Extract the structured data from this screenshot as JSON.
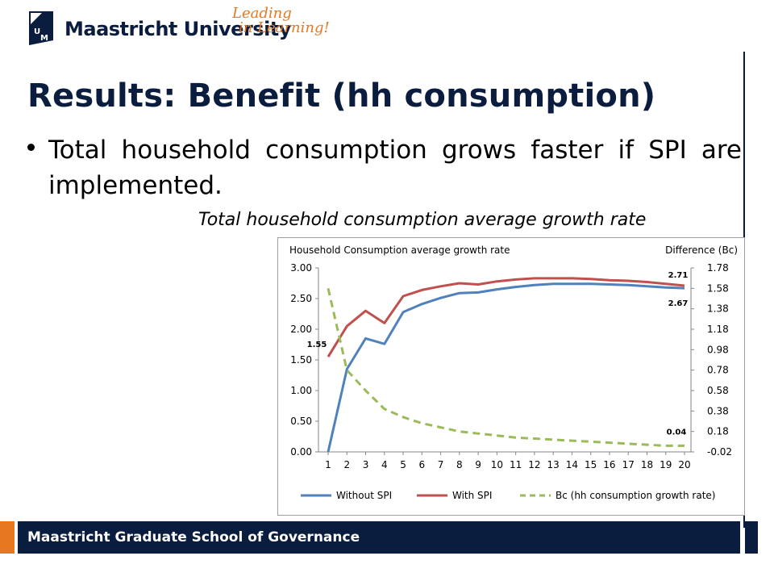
{
  "header": {
    "university": "Maastricht University",
    "tagline_line1": "Leading",
    "tagline_line2": "in Learning!"
  },
  "slide": {
    "title": "Results: Benefit (hh consumption)",
    "bullet": "Total household consumption grows faster if SPI are implemented.",
    "subcaption": "Total household consumption average growth rate"
  },
  "footer": {
    "text": "Maastricht Graduate School of Governance"
  },
  "colors": {
    "navy": "#0b1d3e",
    "orange": "#e87722",
    "blue": "#4f81bd",
    "red": "#c0504d",
    "green": "#9bbb59"
  },
  "chart_data": {
    "type": "line",
    "title": "Household Consumption  average growth rate",
    "right_axis_title": "Difference (Bc)",
    "x": [
      "1",
      "2",
      "3",
      "4",
      "5",
      "6",
      "7",
      "8",
      "9",
      "10",
      "11",
      "12",
      "13",
      "14",
      "15",
      "16",
      "17",
      "18",
      "19",
      "20"
    ],
    "ylim": [
      0,
      3
    ],
    "yticks": [
      "3.00",
      "2.50",
      "2.00",
      "1.50",
      "1.00",
      "0.50",
      "0.00"
    ],
    "y2lim": [
      -0.02,
      1.78
    ],
    "y2ticks": [
      "1.78",
      "1.58",
      "1.38",
      "1.18",
      "0.98",
      "0.78",
      "0.58",
      "0.38",
      "0.18",
      "-0.02"
    ],
    "series": [
      {
        "name": "Without SPI",
        "color": "#4f81bd",
        "axis": "left",
        "dash": false,
        "values": [
          0.0,
          1.35,
          1.85,
          1.76,
          2.28,
          2.41,
          2.51,
          2.59,
          2.6,
          2.65,
          2.69,
          2.72,
          2.74,
          2.74,
          2.74,
          2.73,
          2.72,
          2.7,
          2.68,
          2.67
        ]
      },
      {
        "name": "With SPI",
        "color": "#c0504d",
        "axis": "left",
        "dash": false,
        "values": [
          1.55,
          2.05,
          2.3,
          2.1,
          2.54,
          2.64,
          2.7,
          2.75,
          2.73,
          2.78,
          2.81,
          2.83,
          2.83,
          2.83,
          2.82,
          2.8,
          2.79,
          2.77,
          2.74,
          2.71
        ]
      },
      {
        "name": "Bc (hh consumption growth rate)",
        "color": "#9bbb59",
        "axis": "right",
        "dash": true,
        "values": [
          1.58,
          0.78,
          0.58,
          0.4,
          0.32,
          0.26,
          0.22,
          0.18,
          0.16,
          0.14,
          0.12,
          0.11,
          0.1,
          0.09,
          0.08,
          0.07,
          0.06,
          0.05,
          0.04,
          0.04
        ]
      }
    ],
    "annotations": [
      {
        "text": "1.55",
        "series": 1,
        "index": 0
      },
      {
        "text": "2.71",
        "series": 1,
        "index": 19
      },
      {
        "text": "2.67",
        "series": 0,
        "index": 19
      },
      {
        "text": "0.04",
        "series": 2,
        "index": 19
      }
    ]
  }
}
